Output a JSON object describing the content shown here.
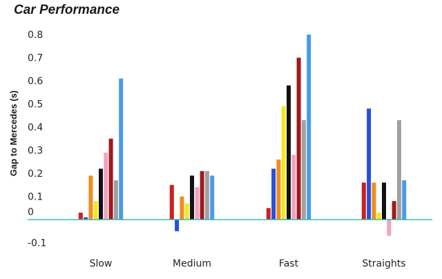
{
  "chart_data": {
    "type": "bar",
    "title": "Car Performance",
    "xlabel": "",
    "ylabel": "Gap to Mercedes (s)",
    "ylim": [
      -0.1,
      0.8
    ],
    "yticks": [
      "0.8",
      "0.7",
      "0.6",
      "0.5",
      "0.4",
      "0.3",
      "0.2",
      "0.1",
      "0",
      "-0.1"
    ],
    "categories": [
      "Slow",
      "Medium",
      "Fast",
      "Straights"
    ],
    "grid": false,
    "zero_line_color": "#38b9b3",
    "series": [
      {
        "color": "#cc1f1f",
        "values": [
          0.03,
          0.15,
          0.05,
          0.16
        ]
      },
      {
        "color": "#2a4fd6",
        "values": [
          0.01,
          -0.05,
          0.22,
          0.48
        ]
      },
      {
        "color": "#f08c1e",
        "values": [
          0.19,
          0.1,
          0.26,
          0.16
        ]
      },
      {
        "color": "#f5e61f",
        "values": [
          0.08,
          0.07,
          0.49,
          0.03
        ]
      },
      {
        "color": "#111111",
        "values": [
          0.22,
          0.19,
          0.58,
          0.16
        ]
      },
      {
        "color": "#f0a3c3",
        "values": [
          0.29,
          0.14,
          0.28,
          -0.07
        ]
      },
      {
        "color": "#a01a1a",
        "values": [
          0.35,
          0.21,
          0.7,
          0.08
        ]
      },
      {
        "color": "#a0a0a0",
        "values": [
          0.17,
          0.21,
          0.43,
          0.43
        ]
      },
      {
        "color": "#4a9be6",
        "values": [
          0.61,
          0.19,
          0.8,
          0.17
        ]
      }
    ]
  }
}
